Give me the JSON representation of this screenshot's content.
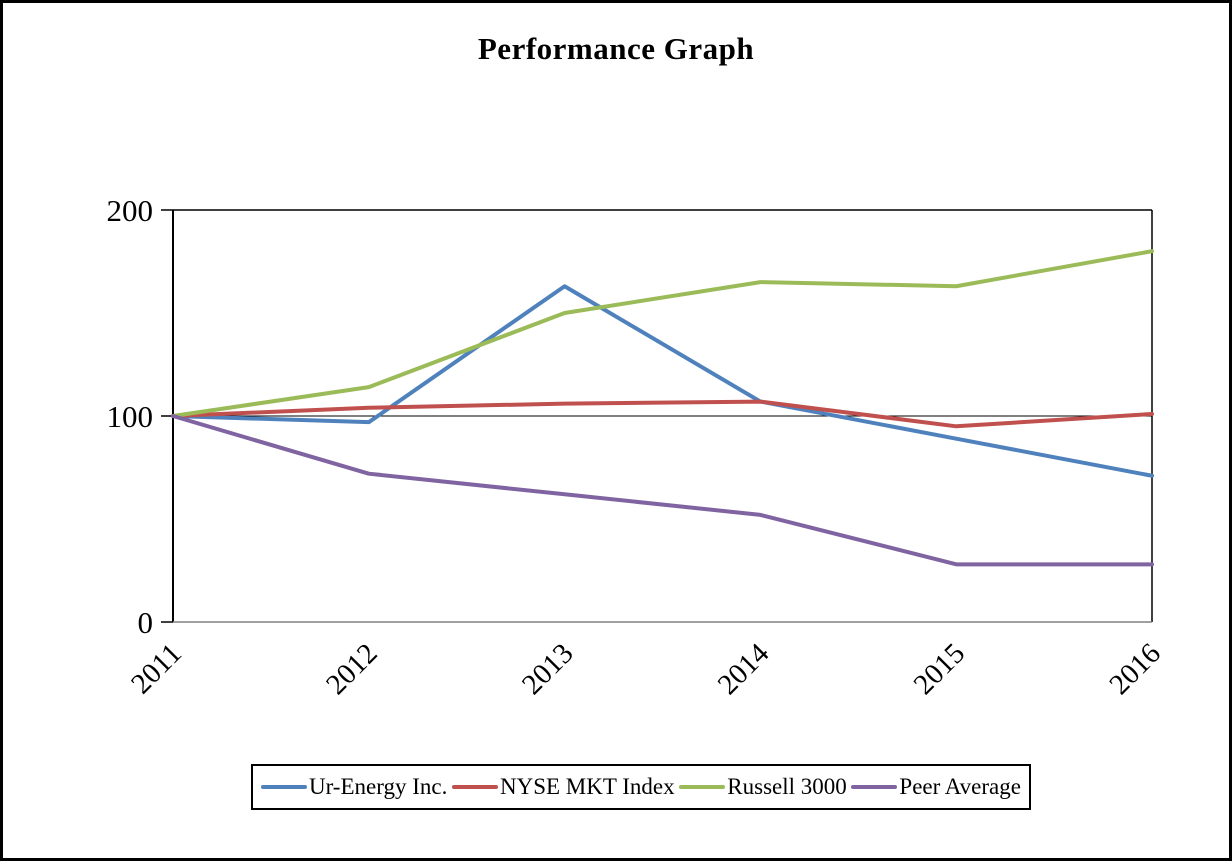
{
  "chart_data": {
    "type": "line",
    "title": "Performance Graph",
    "x": [
      2011,
      2012,
      2013,
      2014,
      2015,
      2016
    ],
    "x_tick_labels": [
      "2011",
      "2012",
      "2013",
      "2014",
      "2015",
      "2016"
    ],
    "y_ticks": [
      0,
      100,
      200
    ],
    "y_tick_labels": [
      "0",
      "100",
      "200"
    ],
    "ylim": [
      0,
      200
    ],
    "reference_line_y": 100,
    "grid": "single horizontal reference line at y=100, plot area framed on all four sides",
    "legend_position": "bottom",
    "series": [
      {
        "name": "Ur-Energy Inc.",
        "color": "#4F81BD",
        "values": [
          100,
          97,
          163,
          107,
          89,
          71
        ]
      },
      {
        "name": "NYSE MKT Index",
        "color": "#C0504D",
        "values": [
          100,
          104,
          106,
          107,
          95,
          101
        ]
      },
      {
        "name": "Russell 3000",
        "color": "#9BBB59",
        "values": [
          100,
          114,
          150,
          165,
          163,
          180
        ]
      },
      {
        "name": "Peer Average",
        "color": "#8064A2",
        "values": [
          100,
          72,
          62,
          52,
          28,
          28
        ]
      }
    ],
    "axis_colors": {
      "frame": "#000000",
      "baseline": "#808080",
      "reference_line": "#000000"
    }
  }
}
